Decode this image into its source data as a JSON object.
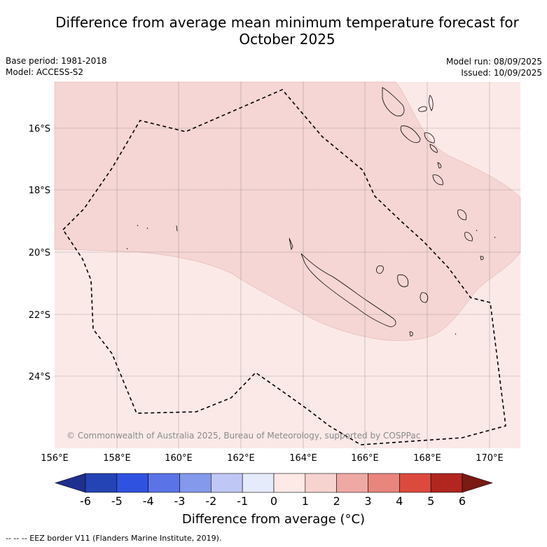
{
  "title_line1": "Difference from average mean minimum temperature forecast for",
  "title_line2": "October 2025",
  "base_period": "Base period: 1981-2018",
  "model": "Model: ACCESS-S2",
  "model_run": "Model run: 08/09/2025",
  "issued": "Issued: 10/09/2025",
  "copyright": "© Commonwealth of Australia 2025, Bureau of Meteorology, supported by COSPPac",
  "lat_labels": [
    "16°S",
    "18°S",
    "20°S",
    "22°S",
    "24°S"
  ],
  "lon_labels": [
    "156°E",
    "158°E",
    "160°E",
    "162°E",
    "164°E",
    "166°E",
    "168°E",
    "170°E"
  ],
  "colorbar": {
    "title": "Difference from average (°C)",
    "ticks": [
      "-6",
      "-5",
      "-4",
      "-3",
      "-2",
      "-1",
      "0",
      "1",
      "2",
      "3",
      "4",
      "5",
      "6"
    ],
    "colors": [
      "#1f2f8f",
      "#2444b5",
      "#2f52e0",
      "#5a74e8",
      "#8499ec",
      "#bfc7f4",
      "#e6ebfb",
      "#fde9e6",
      "#f6d3cf",
      "#efa9a4",
      "#e8857c",
      "#dc4a3e",
      "#b1261f",
      "#7a1a14"
    ]
  },
  "map_fill": {
    "band_0_1": "#fbe9e8",
    "band_1_2": "#f5d6d4"
  },
  "footer": "-- -- -- EEZ border V11 (Flanders Marine Institute, 2019)."
}
